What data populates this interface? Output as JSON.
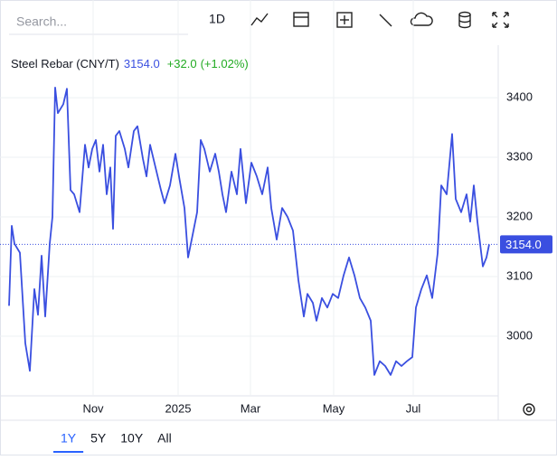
{
  "toolbar": {
    "search_placeholder": "Search...",
    "interval": "1D"
  },
  "ranges": [
    "1Y",
    "5Y",
    "10Y",
    "All"
  ],
  "active_range": 0,
  "chart_data": {
    "type": "line",
    "title": "Steel Rebar (CNY/T)",
    "last_price_label": "3154.0",
    "change_label": "+32.0",
    "change_pct_label": "(+1.02%)",
    "last_price": 3154,
    "color": "#3a4fe0",
    "change_color": "#22ab22",
    "x": [
      0,
      3,
      6,
      12,
      18,
      23,
      28,
      32,
      36,
      40,
      45,
      48,
      51,
      54,
      60,
      64,
      68,
      72,
      78,
      84,
      88,
      92,
      96,
      100,
      104,
      108,
      112,
      115,
      118,
      122,
      128,
      132,
      138,
      142,
      148,
      152,
      156,
      162,
      168,
      172,
      178,
      184,
      188,
      194,
      198,
      202,
      208,
      212,
      216,
      222,
      228,
      232,
      236,
      240,
      246,
      252,
      256,
      262,
      268,
      274,
      280,
      286,
      290,
      296,
      302,
      308,
      314,
      320,
      326,
      330,
      336,
      340,
      346,
      352,
      358,
      364,
      370,
      376,
      382,
      388,
      394,
      400,
      404,
      410,
      416,
      422,
      428,
      434,
      440,
      446,
      450,
      456,
      462,
      468,
      474,
      478,
      484,
      490,
      494,
      500,
      506,
      510,
      514,
      518,
      524,
      528,
      531
    ],
    "values": [
      3051,
      3185,
      3155,
      3140,
      2988,
      2942,
      3079,
      3036,
      3135,
      3033,
      3155,
      3200,
      3417,
      3374,
      3389,
      3415,
      3245,
      3238,
      3208,
      3321,
      3283,
      3314,
      3329,
      3276,
      3321,
      3238,
      3283,
      3180,
      3336,
      3344,
      3314,
      3283,
      3344,
      3352,
      3298,
      3268,
      3321,
      3283,
      3245,
      3223,
      3253,
      3306,
      3268,
      3215,
      3132,
      3162,
      3208,
      3329,
      3314,
      3276,
      3306,
      3276,
      3238,
      3208,
      3276,
      3238,
      3314,
      3223,
      3291,
      3268,
      3238,
      3283,
      3215,
      3162,
      3215,
      3200,
      3177,
      3094,
      3033,
      3071,
      3056,
      3026,
      3064,
      3048,
      3071,
      3064,
      3102,
      3132,
      3102,
      3064,
      3048,
      3026,
      2935,
      2958,
      2950,
      2935,
      2958,
      2950,
      2958,
      2965,
      3048,
      3079,
      3102,
      3064,
      3139,
      3253,
      3238,
      3339,
      3230,
      3208,
      3238,
      3192,
      3253,
      3192,
      3117,
      3132,
      3154
    ],
    "xlim": [
      0,
      541
    ],
    "xticks": [
      {
        "value": 93,
        "label": "Nov"
      },
      {
        "value": 187,
        "label": "2025"
      },
      {
        "value": 267,
        "label": "Mar"
      },
      {
        "value": 359,
        "label": "May"
      },
      {
        "value": 447,
        "label": "Jul"
      }
    ],
    "ylim": [
      2900,
      3488
    ],
    "yticks": [
      3000,
      3100,
      3200,
      3300,
      3400
    ],
    "grid": true
  }
}
